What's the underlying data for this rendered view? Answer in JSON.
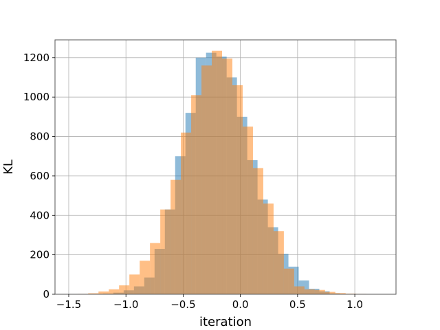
{
  "chart_data": {
    "type": "bar",
    "title": "",
    "xlabel": "iteration",
    "ylabel": "KL",
    "xlim": [
      -1.62,
      1.36
    ],
    "ylim": [
      0,
      1290
    ],
    "xticks": [
      -1.5,
      -1.0,
      -0.5,
      0.0,
      0.5,
      1.0
    ],
    "xtick_labels": [
      "−1.5",
      "−1.0",
      "−0.5",
      "0.0",
      "0.5",
      "1.0"
    ],
    "yticks": [
      0,
      200,
      400,
      600,
      800,
      1000,
      1200
    ],
    "ytick_labels": [
      "0",
      "200",
      "400",
      "600",
      "800",
      "1000",
      "1200"
    ],
    "grid": true,
    "series": [
      {
        "color": "#1f77b4",
        "alpha": 0.5,
        "bin_edges": [
          -1.2,
          -1.11,
          -1.02,
          -0.93,
          -0.84,
          -0.75,
          -0.66,
          -0.57,
          -0.48,
          -0.39,
          -0.3,
          -0.21,
          -0.12,
          -0.03,
          0.06,
          0.15,
          0.24,
          0.33,
          0.42,
          0.51,
          0.6,
          0.69,
          0.78,
          0.87
        ],
        "values": [
          3,
          8,
          20,
          40,
          85,
          230,
          430,
          700,
          920,
          1200,
          1225,
          1205,
          1100,
          900,
          680,
          480,
          340,
          205,
          140,
          70,
          28,
          15,
          4
        ]
      },
      {
        "color": "#ff7f0e",
        "alpha": 0.5,
        "bin_edges": [
          -1.42,
          -1.33,
          -1.24,
          -1.15,
          -1.06,
          -0.97,
          -0.88,
          -0.79,
          -0.7,
          -0.61,
          -0.52,
          -0.43,
          -0.34,
          -0.25,
          -0.16,
          -0.07,
          0.02,
          0.11,
          0.2,
          0.29,
          0.38,
          0.47,
          0.56,
          0.65,
          0.74,
          0.83,
          0.92,
          1.01,
          1.1,
          1.19
        ],
        "values": [
          2,
          5,
          14,
          25,
          45,
          100,
          170,
          260,
          430,
          580,
          820,
          1010,
          1160,
          1235,
          1195,
          1060,
          850,
          640,
          460,
          320,
          130,
          40,
          25,
          22,
          12,
          6,
          3,
          2,
          1
        ]
      }
    ]
  }
}
